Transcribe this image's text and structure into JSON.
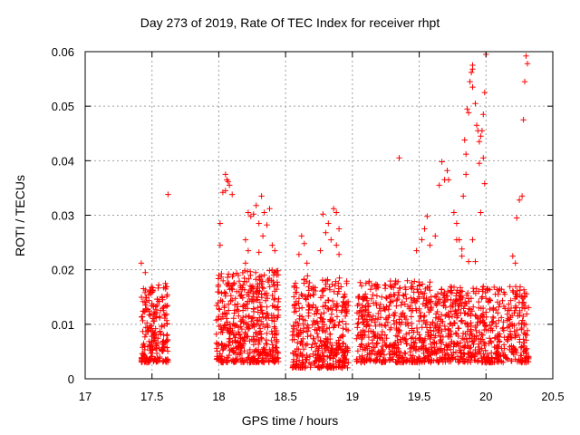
{
  "chart_data": {
    "type": "scatter",
    "title": "Day 273 of 2019, Rate Of TEC Index for receiver rhpt",
    "xlabel": "GPS time / hours",
    "ylabel": "ROTI / TECUs",
    "xlim": [
      17,
      20.5
    ],
    "ylim": [
      0,
      0.06
    ],
    "xticks": [
      "17",
      "17.5",
      "18",
      "18.5",
      "19",
      "19.5",
      "20",
      "20.5"
    ],
    "yticks": [
      "0",
      "0.01",
      "0.02",
      "0.03",
      "0.04",
      "0.05",
      "0.06"
    ],
    "grid": true,
    "marker": "+",
    "color": "#ff0000",
    "clusters": [
      {
        "x": [
          17.42,
          17.62
        ],
        "y": [
          0.003,
          0.017
        ],
        "n": 220
      },
      {
        "x": [
          17.98,
          18.45
        ],
        "y": [
          0.003,
          0.02
        ],
        "n": 520
      },
      {
        "x": [
          18.55,
          18.97
        ],
        "y": [
          0.002,
          0.019
        ],
        "n": 430
      },
      {
        "x": [
          19.03,
          19.6
        ],
        "y": [
          0.003,
          0.018
        ],
        "n": 520
      },
      {
        "x": [
          19.6,
          20.32
        ],
        "y": [
          0.003,
          0.017
        ],
        "n": 640
      }
    ],
    "outliers": [
      [
        17.42,
        0.0212
      ],
      [
        17.45,
        0.0195
      ],
      [
        17.62,
        0.0338
      ],
      [
        17.55,
        0.0172
      ],
      [
        17.6,
        0.0175
      ],
      [
        18.01,
        0.0285
      ],
      [
        18.01,
        0.0245
      ],
      [
        18.03,
        0.0342
      ],
      [
        18.05,
        0.0375
      ],
      [
        18.06,
        0.0365
      ],
      [
        18.07,
        0.0362
      ],
      [
        18.08,
        0.0355
      ],
      [
        18.1,
        0.0338
      ],
      [
        18.05,
        0.0345
      ],
      [
        18.2,
        0.0212
      ],
      [
        18.22,
        0.0305
      ],
      [
        18.24,
        0.0298
      ],
      [
        18.26,
        0.0302
      ],
      [
        18.28,
        0.0318
      ],
      [
        18.3,
        0.0285
      ],
      [
        18.32,
        0.0335
      ],
      [
        18.34,
        0.0305
      ],
      [
        18.36,
        0.0282
      ],
      [
        18.38,
        0.0312
      ],
      [
        18.2,
        0.0255
      ],
      [
        18.22,
        0.0235
      ],
      [
        18.3,
        0.0232
      ],
      [
        18.33,
        0.0262
      ],
      [
        18.4,
        0.0245
      ],
      [
        18.42,
        0.0235
      ],
      [
        18.62,
        0.0262
      ],
      [
        18.64,
        0.0248
      ],
      [
        18.6,
        0.0228
      ],
      [
        18.66,
        0.0212
      ],
      [
        18.78,
        0.0302
      ],
      [
        18.8,
        0.0268
      ],
      [
        18.82,
        0.0285
      ],
      [
        18.84,
        0.0255
      ],
      [
        18.86,
        0.0312
      ],
      [
        18.88,
        0.0305
      ],
      [
        18.9,
        0.0275
      ],
      [
        18.88,
        0.0245
      ],
      [
        18.76,
        0.0235
      ],
      [
        18.9,
        0.0228
      ],
      [
        19.35,
        0.0405
      ],
      [
        19.48,
        0.0235
      ],
      [
        19.52,
        0.0255
      ],
      [
        19.54,
        0.0275
      ],
      [
        19.56,
        0.0298
      ],
      [
        19.58,
        0.0245
      ],
      [
        19.62,
        0.0262
      ],
      [
        19.65,
        0.0355
      ],
      [
        19.67,
        0.0398
      ],
      [
        19.69,
        0.0365
      ],
      [
        19.71,
        0.0382
      ],
      [
        19.72,
        0.0365
      ],
      [
        19.76,
        0.0305
      ],
      [
        19.78,
        0.0285
      ],
      [
        19.8,
        0.0255
      ],
      [
        19.82,
        0.0238
      ],
      [
        19.85,
        0.0375
      ],
      [
        19.86,
        0.0495
      ],
      [
        19.87,
        0.0488
      ],
      [
        19.88,
        0.0545
      ],
      [
        19.89,
        0.0562
      ],
      [
        19.9,
        0.0575
      ],
      [
        19.9,
        0.0535
      ],
      [
        19.9,
        0.0568
      ],
      [
        19.92,
        0.0505
      ],
      [
        19.93,
        0.0465
      ],
      [
        19.94,
        0.0455
      ],
      [
        19.95,
        0.0435
      ],
      [
        19.96,
        0.0445
      ],
      [
        19.97,
        0.0455
      ],
      [
        19.98,
        0.0485
      ],
      [
        19.99,
        0.0525
      ],
      [
        19.98,
        0.0405
      ],
      [
        19.99,
        0.0358
      ],
      [
        19.95,
        0.0395
      ],
      [
        19.84,
        0.0438
      ],
      [
        19.85,
        0.0412
      ],
      [
        20.0,
        0.0595
      ],
      [
        19.83,
        0.0335
      ],
      [
        19.78,
        0.0255
      ],
      [
        20.23,
        0.0295
      ],
      [
        20.25,
        0.0328
      ],
      [
        20.27,
        0.0335
      ],
      [
        20.28,
        0.0475
      ],
      [
        20.29,
        0.0545
      ],
      [
        20.3,
        0.0592
      ],
      [
        20.31,
        0.0578
      ],
      [
        20.2,
        0.0225
      ],
      [
        20.22,
        0.0212
      ],
      [
        19.9,
        0.0255
      ],
      [
        19.82,
        0.0225
      ],
      [
        19.87,
        0.0215
      ],
      [
        19.96,
        0.0305
      ],
      [
        19.92,
        0.0215
      ]
    ]
  }
}
